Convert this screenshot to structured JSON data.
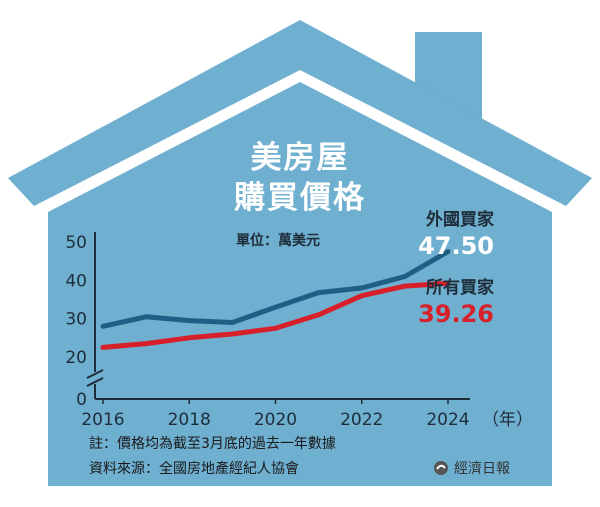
{
  "chart_data": {
    "type": "line",
    "title": "美房屋",
    "subtitle": "購買價格",
    "unit_label": "單位：萬美元",
    "x": [
      2016,
      2017,
      2018,
      2019,
      2020,
      2021,
      2022,
      2023,
      2024
    ],
    "xtick_labels": [
      "2016",
      "2018",
      "2020",
      "2022",
      "2024"
    ],
    "xlabel": "（年）",
    "yticks": [
      "0",
      "20",
      "30",
      "40",
      "50"
    ],
    "ylim": [
      20,
      50
    ],
    "axis_break": true,
    "grid": false,
    "series": [
      {
        "name": "外國買家",
        "value_label": "47.50",
        "values": [
          28,
          30.5,
          29.5,
          29,
          33,
          36.8,
          38,
          41,
          47.5
        ],
        "color": "#1f5f86"
      },
      {
        "name": "所有買家",
        "value_label": "39.26",
        "values": [
          22.5,
          23.5,
          25,
          26,
          27.5,
          31,
          36,
          38.5,
          39.26
        ],
        "color": "#d7202a"
      }
    ],
    "notes": [
      "註：價格均為截至3月底的過去一年數據",
      "資料來源：全國房地產經紀人協會"
    ],
    "source_brand": "經濟日報"
  },
  "colors": {
    "house": "#6fafd0",
    "axis": "#1f2d3a"
  }
}
